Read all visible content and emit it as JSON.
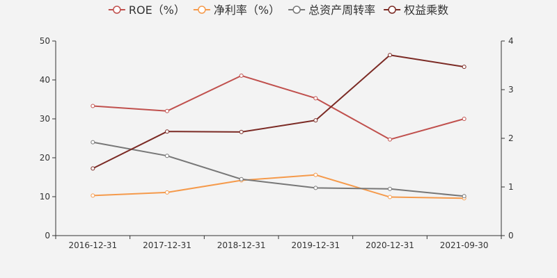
{
  "chart_data": {
    "type": "line",
    "categories": [
      "2016-12-31",
      "2017-12-31",
      "2018-12-31",
      "2019-12-31",
      "2020-12-31",
      "2021-09-30"
    ],
    "left_axis": {
      "min": 0,
      "max": 50,
      "ticks": [
        "0",
        "10",
        "20",
        "30",
        "40",
        "50"
      ]
    },
    "right_axis": {
      "min": 0,
      "max": 4,
      "ticks": [
        "0",
        "1",
        "2",
        "3",
        "4"
      ]
    },
    "legend_position": "top-center",
    "grid": false,
    "series": [
      {
        "name": "ROE（%）",
        "axis": "left",
        "color": "#c0504d",
        "values": [
          33.3,
          32.0,
          41.1,
          35.3,
          24.7,
          30.0
        ]
      },
      {
        "name": "净利率（%）",
        "axis": "left",
        "color": "#f59a4b",
        "values": [
          10.3,
          11.1,
          14.2,
          15.6,
          9.9,
          9.6
        ]
      },
      {
        "name": "总资产周转率",
        "axis": "right",
        "color": "#777777",
        "values": [
          1.92,
          1.64,
          1.16,
          0.98,
          0.96,
          0.81
        ]
      },
      {
        "name": "权益乘数",
        "axis": "right",
        "color": "#7b2a24",
        "values": [
          1.38,
          2.14,
          2.13,
          2.37,
          3.71,
          3.47
        ]
      }
    ]
  }
}
